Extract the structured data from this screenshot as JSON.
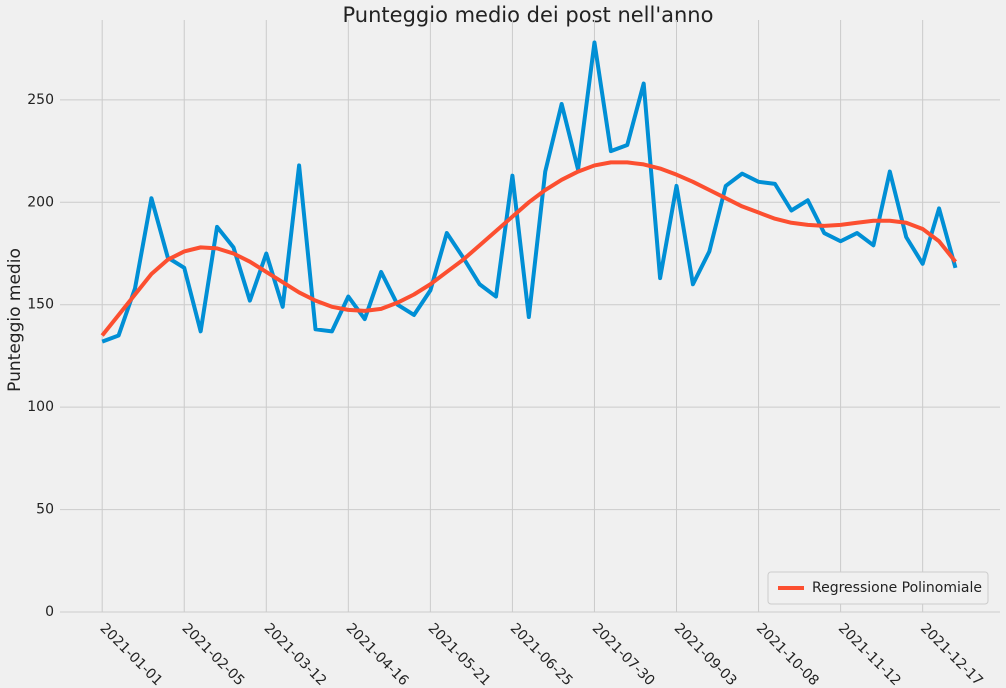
{
  "chart_data": {
    "type": "line",
    "title": "Punteggio medio dei post nell'anno",
    "y_label": "Punteggio medio",
    "x": [
      "2021-01-01",
      "2021-01-08",
      "2021-01-15",
      "2021-01-22",
      "2021-01-29",
      "2021-02-05",
      "2021-02-12",
      "2021-02-19",
      "2021-02-26",
      "2021-03-05",
      "2021-03-12",
      "2021-03-19",
      "2021-03-26",
      "2021-04-02",
      "2021-04-09",
      "2021-04-16",
      "2021-04-23",
      "2021-04-30",
      "2021-05-07",
      "2021-05-14",
      "2021-05-21",
      "2021-05-28",
      "2021-06-04",
      "2021-06-11",
      "2021-06-18",
      "2021-06-25",
      "2021-07-02",
      "2021-07-09",
      "2021-07-16",
      "2021-07-23",
      "2021-07-30",
      "2021-08-06",
      "2021-08-13",
      "2021-08-20",
      "2021-08-27",
      "2021-09-03",
      "2021-09-10",
      "2021-09-17",
      "2021-09-24",
      "2021-10-01",
      "2021-10-08",
      "2021-10-15",
      "2021-10-22",
      "2021-10-29",
      "2021-11-05",
      "2021-11-12",
      "2021-11-19",
      "2021-11-26",
      "2021-12-03",
      "2021-12-10",
      "2021-12-17",
      "2021-12-24",
      "2021-12-31"
    ],
    "series": [
      {
        "color": "#008fd5",
        "values": [
          132,
          135,
          158,
          202,
          173,
          168,
          137,
          188,
          178,
          152,
          175,
          149,
          218,
          138,
          137,
          154,
          143,
          166,
          150,
          145,
          157,
          185,
          173,
          160,
          154,
          213,
          144,
          215,
          248,
          216,
          278,
          225,
          228,
          258,
          163,
          208,
          160,
          176,
          208,
          214,
          210,
          209,
          196,
          201,
          185,
          181,
          185,
          179,
          215,
          183,
          170,
          197,
          168
        ]
      },
      {
        "name": "Regressione Polinomiale",
        "color": "#fc4f30",
        "values": [
          135,
          145,
          155,
          165,
          172,
          176,
          178,
          177.5,
          175,
          171,
          166,
          161,
          156,
          152,
          149,
          147.5,
          147,
          148,
          151,
          155,
          160,
          166,
          172,
          179,
          186,
          193,
          200,
          206,
          211,
          215,
          218,
          219.5,
          219.5,
          218.5,
          216.5,
          213.5,
          210,
          206,
          202,
          198,
          195,
          192,
          190,
          189,
          188.5,
          189,
          190,
          191,
          191,
          190,
          187,
          181,
          171
        ]
      }
    ],
    "xlim": [
      "2020-12-14",
      "2022-01-19"
    ],
    "xticks": [
      "2021-01-01",
      "2021-02-05",
      "2021-03-12",
      "2021-04-16",
      "2021-05-21",
      "2021-06-25",
      "2021-07-30",
      "2021-09-03",
      "2021-10-08",
      "2021-11-12",
      "2021-12-17"
    ],
    "ylim": [
      0,
      289
    ],
    "yticks": [
      0,
      50,
      100,
      150,
      200,
      250
    ],
    "grid": true,
    "legend": "lower right"
  }
}
